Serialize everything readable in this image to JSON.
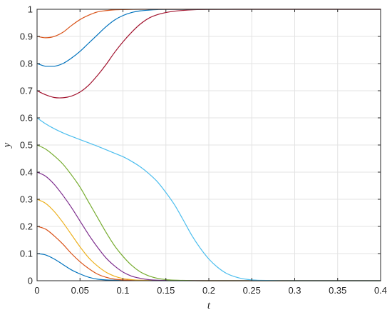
{
  "chart_data": {
    "type": "line",
    "xlabel": "t",
    "ylabel": "y",
    "xlim": [
      0,
      0.4
    ],
    "ylim": [
      0,
      1
    ],
    "grid": true,
    "xticks": [
      0,
      0.05,
      0.1,
      0.15,
      0.2,
      0.25,
      0.3,
      0.35,
      0.4
    ],
    "xtick_labels": [
      "0",
      "0.05",
      "0.1",
      "0.15",
      "0.2",
      "0.25",
      "0.3",
      "0.35",
      "0.4"
    ],
    "yticks": [
      0,
      0.1,
      0.2,
      0.3,
      0.4,
      0.5,
      0.6,
      0.7,
      0.8,
      0.9,
      1
    ],
    "ytick_labels": [
      "0",
      "0.1",
      "0.2",
      "0.3",
      "0.4",
      "0.5",
      "0.6",
      "0.7",
      "0.8",
      "0.9",
      "1"
    ],
    "series": [
      {
        "color": "#0072BD",
        "x": [
          0,
          0.01,
          0.02,
          0.03,
          0.04,
          0.05,
          0.06,
          0.07,
          0.08,
          0.1,
          0.12,
          0.15,
          0.2,
          0.3,
          0.4
        ],
        "y": [
          0.1,
          0.095,
          0.08,
          0.06,
          0.04,
          0.025,
          0.013,
          0.006,
          0.003,
          0.001,
          0.0003,
          0,
          0,
          0,
          0
        ]
      },
      {
        "color": "#D95319",
        "x": [
          0,
          0.01,
          0.02,
          0.03,
          0.04,
          0.05,
          0.06,
          0.07,
          0.08,
          0.09,
          0.1,
          0.12,
          0.15,
          0.2,
          0.3,
          0.4
        ],
        "y": [
          0.2,
          0.19,
          0.165,
          0.135,
          0.1,
          0.07,
          0.045,
          0.025,
          0.013,
          0.006,
          0.003,
          0.001,
          0.0002,
          0,
          0,
          0
        ]
      },
      {
        "color": "#EDB120",
        "x": [
          0,
          0.01,
          0.02,
          0.03,
          0.04,
          0.05,
          0.06,
          0.07,
          0.08,
          0.09,
          0.1,
          0.11,
          0.12,
          0.15,
          0.2,
          0.3,
          0.4
        ],
        "y": [
          0.3,
          0.285,
          0.255,
          0.215,
          0.17,
          0.125,
          0.085,
          0.055,
          0.032,
          0.017,
          0.008,
          0.004,
          0.002,
          0.0004,
          0,
          0,
          0
        ]
      },
      {
        "color": "#7E2F8E",
        "x": [
          0,
          0.01,
          0.02,
          0.03,
          0.04,
          0.05,
          0.06,
          0.07,
          0.08,
          0.09,
          0.1,
          0.11,
          0.12,
          0.13,
          0.15,
          0.2,
          0.3,
          0.4
        ],
        "y": [
          0.4,
          0.385,
          0.355,
          0.315,
          0.27,
          0.22,
          0.17,
          0.125,
          0.085,
          0.055,
          0.032,
          0.017,
          0.009,
          0.004,
          0.001,
          0,
          0,
          0
        ]
      },
      {
        "color": "#77AC30",
        "x": [
          0,
          0.01,
          0.02,
          0.03,
          0.04,
          0.05,
          0.06,
          0.07,
          0.08,
          0.09,
          0.1,
          0.11,
          0.12,
          0.13,
          0.14,
          0.15,
          0.16,
          0.18,
          0.2,
          0.3,
          0.4
        ],
        "y": [
          0.5,
          0.485,
          0.46,
          0.43,
          0.39,
          0.345,
          0.29,
          0.235,
          0.18,
          0.13,
          0.09,
          0.057,
          0.033,
          0.018,
          0.009,
          0.004,
          0.002,
          0.0004,
          0,
          0,
          0
        ]
      },
      {
        "color": "#4DBEEE",
        "x": [
          0,
          0.01,
          0.02,
          0.03,
          0.04,
          0.05,
          0.06,
          0.07,
          0.08,
          0.09,
          0.1,
          0.11,
          0.12,
          0.13,
          0.14,
          0.15,
          0.16,
          0.17,
          0.18,
          0.19,
          0.2,
          0.21,
          0.22,
          0.23,
          0.24,
          0.25,
          0.26,
          0.28,
          0.3,
          0.35,
          0.4
        ],
        "y": [
          0.6,
          0.578,
          0.56,
          0.545,
          0.532,
          0.52,
          0.508,
          0.496,
          0.483,
          0.47,
          0.457,
          0.44,
          0.42,
          0.395,
          0.365,
          0.325,
          0.28,
          0.225,
          0.168,
          0.12,
          0.08,
          0.05,
          0.028,
          0.015,
          0.007,
          0.003,
          0.0015,
          0.0003,
          0,
          0,
          0
        ]
      },
      {
        "color": "#A2142F",
        "x": [
          0,
          0.01,
          0.02,
          0.03,
          0.04,
          0.05,
          0.06,
          0.07,
          0.08,
          0.09,
          0.1,
          0.11,
          0.12,
          0.13,
          0.14,
          0.15,
          0.16,
          0.17,
          0.18,
          0.2,
          0.25,
          0.3,
          0.4
        ],
        "y": [
          0.7,
          0.685,
          0.675,
          0.674,
          0.68,
          0.695,
          0.72,
          0.755,
          0.795,
          0.84,
          0.88,
          0.915,
          0.945,
          0.967,
          0.98,
          0.988,
          0.993,
          0.996,
          0.998,
          0.9995,
          1,
          1,
          1
        ]
      },
      {
        "color": "#0072BD",
        "x": [
          0,
          0.01,
          0.02,
          0.03,
          0.04,
          0.05,
          0.06,
          0.07,
          0.08,
          0.09,
          0.1,
          0.11,
          0.12,
          0.13,
          0.14,
          0.15,
          0.2,
          0.3,
          0.4
        ],
        "y": [
          0.8,
          0.79,
          0.79,
          0.8,
          0.82,
          0.845,
          0.875,
          0.905,
          0.935,
          0.96,
          0.977,
          0.988,
          0.994,
          0.997,
          0.999,
          0.9995,
          1,
          1,
          1
        ]
      },
      {
        "color": "#D95319",
        "x": [
          0,
          0.01,
          0.02,
          0.03,
          0.04,
          0.05,
          0.06,
          0.07,
          0.08,
          0.09,
          0.1,
          0.12,
          0.15,
          0.2,
          0.3,
          0.4
        ],
        "y": [
          0.9,
          0.895,
          0.9,
          0.915,
          0.94,
          0.962,
          0.978,
          0.99,
          0.995,
          0.998,
          0.999,
          1,
          1,
          1,
          1,
          1
        ]
      }
    ]
  }
}
